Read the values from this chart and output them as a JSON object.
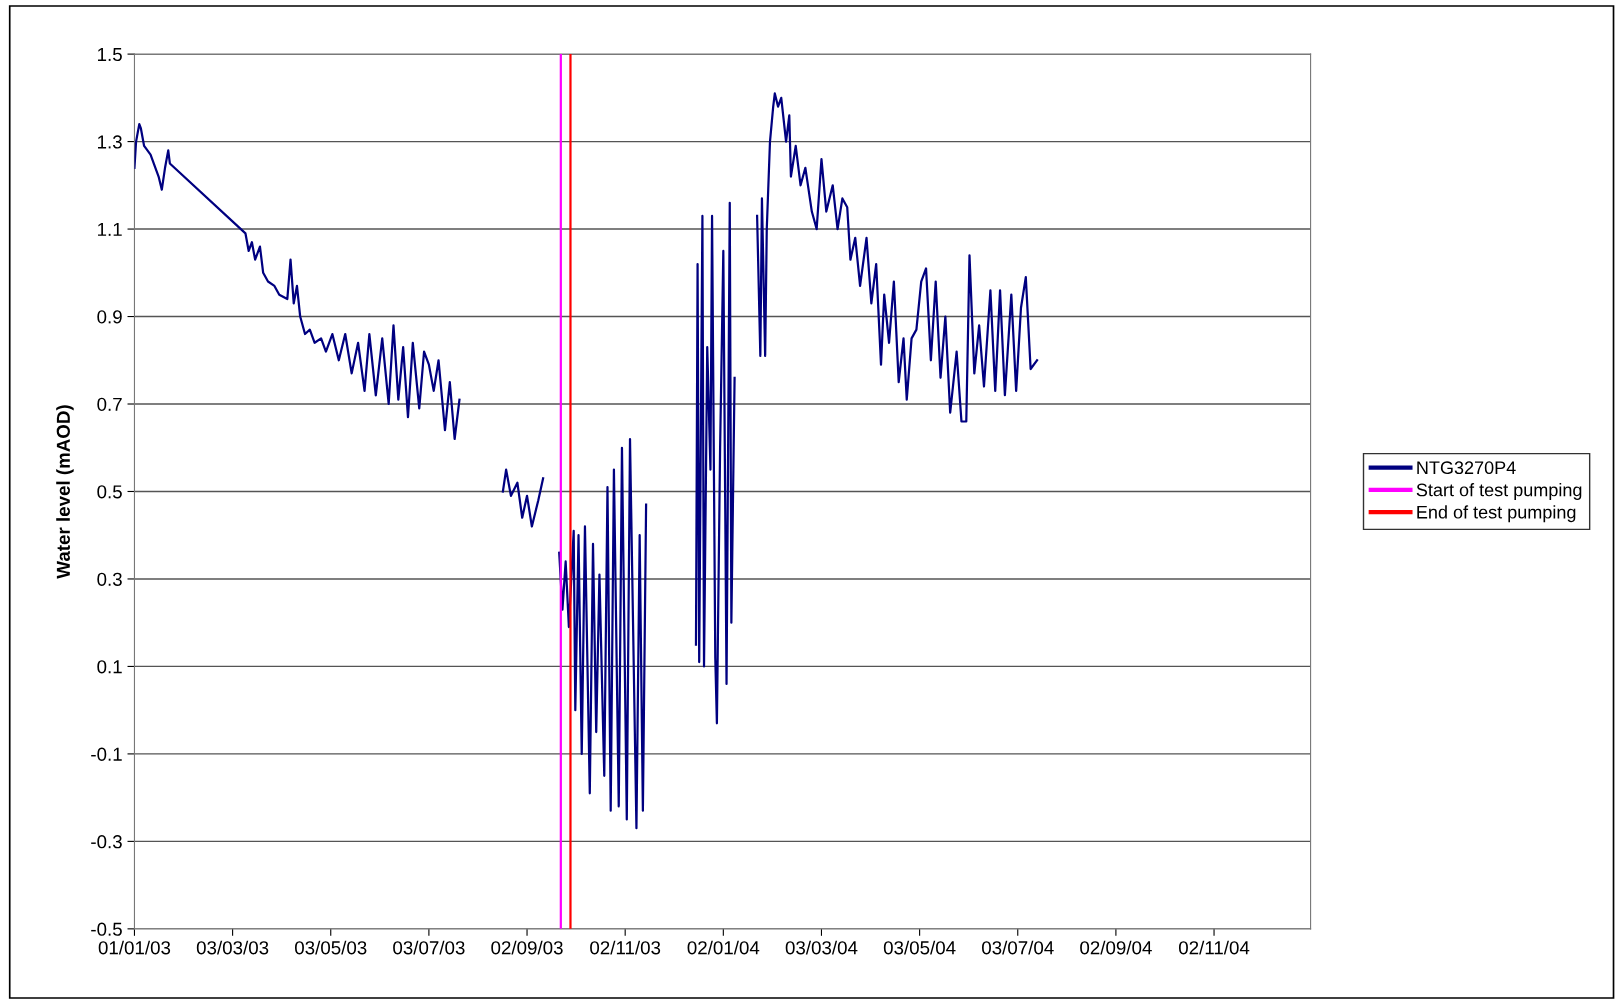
{
  "chart_data": {
    "type": "line",
    "ylabel": "Water level (mAOD)",
    "x": [
      "2003-01-01",
      "2003-01-02",
      "2003-01-04",
      "2003-01-05",
      "2003-01-07",
      "2003-01-11",
      "2003-01-14",
      "2003-01-16",
      "2003-01-18",
      "2003-01-20",
      "2003-01-22",
      "2003-01-23",
      "2003-03-11",
      "2003-03-13",
      "2003-03-15",
      "2003-03-17",
      "2003-03-20",
      "2003-03-22",
      "2003-03-25",
      "2003-03-29",
      "2003-04-01",
      "2003-04-06",
      "2003-04-08",
      "2003-04-10",
      "2003-04-12",
      "2003-04-14",
      "2003-04-17",
      "2003-04-20",
      "2003-04-23",
      "2003-04-27",
      "2003-04-30",
      "2003-05-04",
      "2003-05-08",
      "2003-05-12",
      "2003-05-16",
      "2003-05-20",
      "2003-05-24",
      "2003-05-27",
      "2003-05-31",
      "2003-06-04",
      "2003-06-08",
      "2003-06-11",
      "2003-06-14",
      "2003-06-17",
      "2003-06-20",
      "2003-06-23",
      "2003-06-27",
      "2003-06-30",
      "2003-07-03",
      "2003-07-06",
      "2003-07-09",
      "2003-07-13",
      "2003-07-16",
      "2003-07-19",
      "2003-07-22",
      "2003-08-01",
      "2003-08-18",
      "2003-08-20",
      "2003-08-23",
      "2003-08-27",
      "2003-08-30",
      "2003-09-02",
      "2003-09-05",
      "2003-09-09",
      "2003-09-12",
      "2003-09-16",
      "2003-09-22",
      "2003-09-24",
      "2003-09-26",
      "2003-09-28",
      "2003-10-01",
      "2003-10-02",
      "2003-10-04",
      "2003-10-06",
      "2003-10-08",
      "2003-10-11",
      "2003-10-13",
      "2003-10-15",
      "2003-10-17",
      "2003-10-20",
      "2003-10-22",
      "2003-10-24",
      "2003-10-26",
      "2003-10-29",
      "2003-10-31",
      "2003-11-03",
      "2003-11-05",
      "2003-11-08",
      "2003-11-09",
      "2003-11-11",
      "2003-11-13",
      "2003-11-15",
      "2003-11-30",
      "2003-12-16",
      "2003-12-17",
      "2003-12-18",
      "2003-12-20",
      "2003-12-21",
      "2003-12-23",
      "2003-12-25",
      "2003-12-26",
      "2003-12-28",
      "2003-12-29",
      "2003-12-31",
      "2004-01-02",
      "2004-01-04",
      "2004-01-06",
      "2004-01-07",
      "2004-01-09",
      "2004-01-16",
      "2004-01-23",
      "2004-01-25",
      "2004-01-26",
      "2004-01-28",
      "2004-01-29",
      "2004-01-31",
      "2004-02-02",
      "2004-02-03",
      "2004-02-05",
      "2004-02-07",
      "2004-02-10",
      "2004-02-12",
      "2004-02-13",
      "2004-02-16",
      "2004-02-19",
      "2004-02-22",
      "2004-02-26",
      "2004-02-29",
      "2004-03-03",
      "2004-03-06",
      "2004-03-10",
      "2004-03-13",
      "2004-03-16",
      "2004-03-19",
      "2004-03-21",
      "2004-03-24",
      "2004-03-27",
      "2004-03-31",
      "2004-04-03",
      "2004-04-06",
      "2004-04-09",
      "2004-04-11",
      "2004-04-14",
      "2004-04-17",
      "2004-04-20",
      "2004-04-23",
      "2004-04-25",
      "2004-04-28",
      "2004-05-01",
      "2004-05-04",
      "2004-05-07",
      "2004-05-10",
      "2004-05-13",
      "2004-05-16",
      "2004-05-19",
      "2004-05-22",
      "2004-05-26",
      "2004-05-29",
      "2004-06-01",
      "2004-06-03",
      "2004-06-06",
      "2004-06-09",
      "2004-06-12",
      "2004-06-16",
      "2004-06-19",
      "2004-06-22",
      "2004-06-25",
      "2004-06-29",
      "2004-07-02",
      "2004-07-05",
      "2004-07-08",
      "2004-07-11",
      "2004-07-15"
    ],
    "series": [
      {
        "name": "NTG3270P4",
        "color": "#000080",
        "values": [
          1.24,
          1.3,
          1.34,
          1.33,
          1.29,
          1.27,
          1.24,
          1.22,
          1.19,
          1.24,
          1.28,
          1.25,
          1.09,
          1.05,
          1.07,
          1.03,
          1.06,
          1.0,
          0.98,
          0.97,
          0.95,
          0.94,
          1.03,
          0.93,
          0.97,
          0.9,
          0.86,
          0.87,
          0.84,
          0.85,
          0.82,
          0.86,
          0.8,
          0.86,
          0.77,
          0.84,
          0.73,
          0.86,
          0.72,
          0.85,
          0.7,
          0.88,
          0.71,
          0.83,
          0.67,
          0.84,
          0.69,
          0.82,
          0.79,
          0.73,
          0.8,
          0.64,
          0.75,
          0.62,
          0.71,
          null,
          0.5,
          0.55,
          0.49,
          0.52,
          0.44,
          0.49,
          0.42,
          0.48,
          0.53,
          null,
          0.36,
          0.23,
          0.34,
          0.19,
          0.41,
          0.0,
          0.4,
          -0.1,
          0.42,
          -0.19,
          0.38,
          -0.05,
          0.31,
          -0.15,
          0.51,
          -0.23,
          0.55,
          -0.22,
          0.6,
          -0.25,
          0.62,
          -0.05,
          -0.27,
          0.4,
          -0.23,
          0.47,
          null,
          0.15,
          1.02,
          0.11,
          1.13,
          0.1,
          0.83,
          0.55,
          1.13,
          0.12,
          -0.03,
          0.6,
          1.05,
          0.06,
          1.16,
          0.2,
          0.76,
          null,
          1.13,
          0.81,
          1.17,
          0.81,
          1.1,
          1.3,
          1.38,
          1.41,
          1.38,
          1.4,
          1.3,
          1.36,
          1.22,
          1.29,
          1.2,
          1.24,
          1.14,
          1.1,
          1.26,
          1.14,
          1.2,
          1.1,
          1.17,
          1.15,
          1.03,
          1.08,
          0.97,
          1.08,
          0.93,
          1.02,
          0.79,
          0.95,
          0.84,
          0.98,
          0.75,
          0.85,
          0.71,
          0.85,
          0.87,
          0.98,
          1.01,
          0.8,
          0.98,
          0.76,
          0.9,
          0.68,
          0.82,
          0.66,
          0.66,
          1.04,
          0.77,
          0.88,
          0.74,
          0.96,
          0.73,
          0.96,
          0.72,
          0.95,
          0.73,
          0.92,
          0.99,
          0.78,
          0.8
        ]
      },
      {
        "name": "Start of test pumping",
        "color": "#ff00ff",
        "x": [
          "2003-09-23",
          "2003-09-23"
        ],
        "values": [
          -0.5,
          1.5
        ]
      },
      {
        "name": "End of test pumping",
        "color": "#ff0000",
        "x": [
          "2003-09-29",
          "2003-09-29"
        ],
        "values": [
          -0.5,
          1.5
        ]
      }
    ],
    "xlim": [
      "2003-01-01",
      "2005-01-01"
    ],
    "xticks": [
      {
        "value": "2003-01-01",
        "label": "01/01/03"
      },
      {
        "value": "2003-03-03",
        "label": "03/03/03"
      },
      {
        "value": "2003-05-03",
        "label": "03/05/03"
      },
      {
        "value": "2003-07-03",
        "label": "03/07/03"
      },
      {
        "value": "2003-09-02",
        "label": "02/09/03"
      },
      {
        "value": "2003-11-02",
        "label": "02/11/03"
      },
      {
        "value": "2004-01-02",
        "label": "02/01/04"
      },
      {
        "value": "2004-03-03",
        "label": "03/03/04"
      },
      {
        "value": "2004-05-03",
        "label": "03/05/04"
      },
      {
        "value": "2004-07-03",
        "label": "03/07/04"
      },
      {
        "value": "2004-09-02",
        "label": "02/09/04"
      },
      {
        "value": "2004-11-02",
        "label": "02/11/04"
      }
    ],
    "ylim": [
      -0.5,
      1.5
    ],
    "yticks": [
      -0.5,
      -0.3,
      -0.1,
      0.1,
      0.3,
      0.5,
      0.7,
      0.9,
      1.1,
      1.3,
      1.5
    ],
    "grid": "y",
    "legend": "right"
  }
}
